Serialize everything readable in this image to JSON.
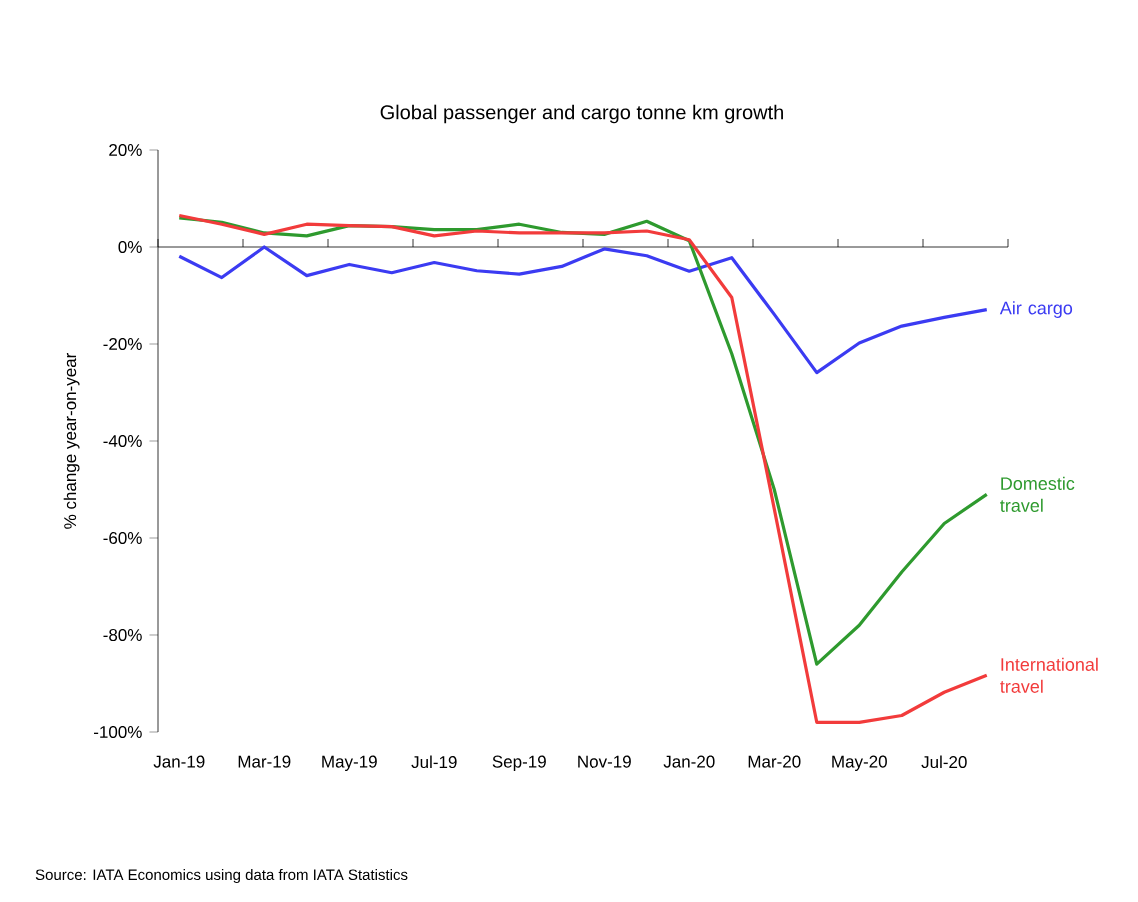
{
  "chart_data": {
    "type": "line",
    "title": "Global passenger and cargo tonne km growth",
    "ylabel": "% change year-on-year",
    "categories": [
      "Jan-19",
      null,
      "Mar-19",
      null,
      "May-19",
      null,
      "Jul-19",
      null,
      "Sep-19",
      null,
      "Nov-19",
      null,
      "Jan-20",
      null,
      "Mar-20",
      null,
      "May-20",
      null,
      "Jul-20",
      null
    ],
    "series": [
      {
        "name": "Air cargo",
        "color": "#3b3bf2",
        "values": [
          -1.9,
          -6.3,
          0,
          -5.9,
          -3.6,
          -5.3,
          -3.2,
          -4.9,
          -5.6,
          -4.0,
          -0.4,
          -1.8,
          -5.0,
          -2.2,
          -13.9,
          -25.9,
          -19.8,
          -16.3,
          -14.5,
          -12.9
        ]
      },
      {
        "name": "Domestic travel",
        "color": "#2e9a2e",
        "values": [
          6.0,
          5.1,
          2.9,
          2.3,
          4.4,
          4.2,
          3.6,
          3.6,
          4.7,
          3.0,
          2.6,
          5.3,
          1.3,
          -22,
          -50,
          -86,
          -78,
          -67,
          -57,
          -51
        ]
      },
      {
        "name": "International travel",
        "color": "#f23b3b",
        "values": [
          6.5,
          4.7,
          2.6,
          4.7,
          4.4,
          4.2,
          2.3,
          3.3,
          2.9,
          2.9,
          2.9,
          3.3,
          1.5,
          -10.4,
          -54,
          -98,
          -98,
          -96.6,
          -91.8,
          -88.3
        ]
      }
    ],
    "ylim": [
      -100,
      20
    ],
    "yticks": [
      {
        "value": -100,
        "label": "-100%"
      },
      {
        "value": -80,
        "label": "-80%"
      },
      {
        "value": -60,
        "label": "-60%"
      },
      {
        "value": -40,
        "label": "-40%"
      },
      {
        "value": -20,
        "label": "-20%"
      },
      {
        "value": 0,
        "label": "0%"
      },
      {
        "value": 20,
        "label": "20%"
      }
    ],
    "line_style": "solid",
    "annotations": [
      "Source: IATA Economics using data from IATA Statistics"
    ]
  }
}
